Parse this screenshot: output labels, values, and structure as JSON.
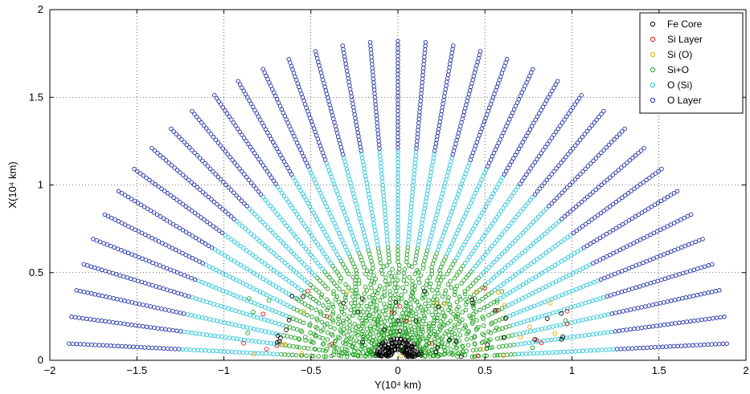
{
  "chart_data": {
    "type": "scatter",
    "xlabel": "Y(10⁴ km)",
    "ylabel": "X(10⁴ km)",
    "xlim": [
      -2,
      2
    ],
    "ylim": [
      0,
      2
    ],
    "xticks": [
      "−2",
      "−1.5",
      "−1",
      "−0.5",
      "0",
      "0.5",
      "1",
      "1.5",
      "2"
    ],
    "yticks": [
      "0",
      "0.5",
      "1",
      "1.5",
      "2"
    ],
    "grid": true,
    "legend_position": "top-right",
    "series": [
      {
        "name": "Fe Core",
        "color": "#000000"
      },
      {
        "name": "Si Layer",
        "color": "#e31a1c"
      },
      {
        "name": "Si (O)",
        "color": "#f0a800"
      },
      {
        "name": "Si+O",
        "color": "#1fa01f"
      },
      {
        "name": "O (Si)",
        "color": "#22c4dc"
      },
      {
        "name": "O Layer",
        "color": "#1f2fa8"
      }
    ],
    "rays": {
      "count": 37,
      "angle_range_deg": [
        -87,
        87
      ],
      "r_inner": 0.06,
      "r_fe_core_end": 0.13,
      "r_si_o_end": 0.65,
      "r_o_si_end": 1.2,
      "r_max": 1.82,
      "points_per_ray": 85
    }
  }
}
